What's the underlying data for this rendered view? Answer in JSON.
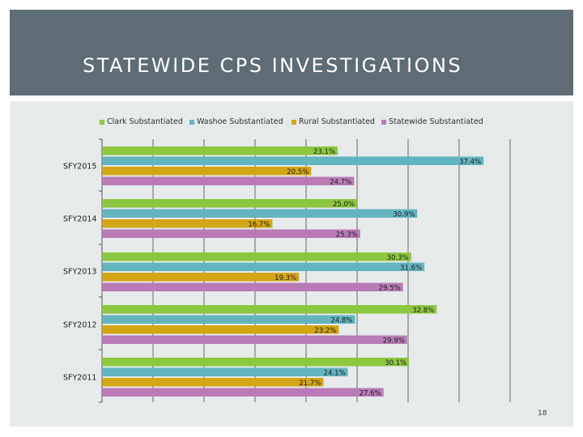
{
  "header": {
    "title": "STATEWIDE CPS INVESTIGATIONS"
  },
  "slide_number": "18",
  "chart_data": {
    "type": "bar",
    "orientation": "horizontal",
    "title": "",
    "xlabel": "",
    "ylabel": "",
    "xlim": [
      0,
      40
    ],
    "grid": true,
    "legend_position": "top",
    "categories": [
      "SFY2015",
      "SFY2014",
      "SFY2013",
      "SFY2012",
      "SFY2011"
    ],
    "series": [
      {
        "name": "Clark Substantiated",
        "color": "#8dc63f",
        "values": [
          23.1,
          25.0,
          30.3,
          32.8,
          30.1
        ],
        "labels": [
          "23.1%",
          "25.0%",
          "30.3%",
          "32.8%",
          "30.1%"
        ]
      },
      {
        "name": "Washoe Substantiated",
        "color": "#62b4bf",
        "values": [
          37.4,
          30.9,
          31.6,
          24.8,
          24.1
        ],
        "labels": [
          "37.4%",
          "30.9%",
          "31.6%",
          "24.8%",
          "24.1%"
        ]
      },
      {
        "name": "Rural Substantiated",
        "color": "#d4a514",
        "values": [
          20.5,
          16.7,
          19.3,
          23.2,
          21.7
        ],
        "labels": [
          "20.5%",
          "16.7%",
          "19.3%",
          "23.2%",
          "21.7%"
        ]
      },
      {
        "name": "Statewide Substantiated",
        "color": "#b87bb6",
        "values": [
          24.7,
          25.3,
          29.5,
          29.9,
          27.6
        ],
        "labels": [
          "24.7%",
          "25.3%",
          "29.5%",
          "29.9%",
          "27.6%"
        ]
      }
    ]
  }
}
